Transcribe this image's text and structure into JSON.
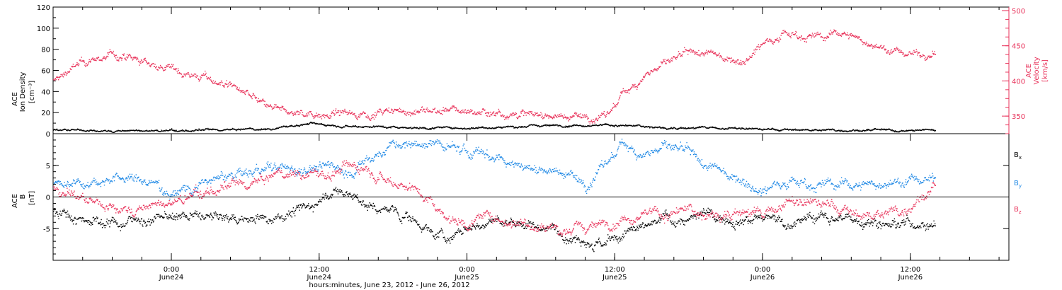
{
  "chart_data": [
    {
      "type": "scatter",
      "panel": "plasma",
      "ylabel_left": [
        "ACE",
        "Ion Density",
        "[cm⁻³]"
      ],
      "ylabel_right": [
        "ACE",
        "Velocity",
        "[km/s]"
      ],
      "ylim_left": [
        0,
        120
      ],
      "yticks_left": [
        "0",
        "20",
        "40",
        "60",
        "80",
        "100",
        "120"
      ],
      "ylim_right": [
        325,
        505
      ],
      "yticks_right": [
        "350",
        "400",
        "450",
        "500"
      ],
      "colors": {
        "density": "#000000",
        "velocity": "#e8325a"
      },
      "series": [
        {
          "name": "Ion Density",
          "axis": "left",
          "x_hours": [
            0,
            6,
            12,
            18,
            22,
            26,
            30,
            34,
            38,
            42,
            46,
            50,
            54,
            58,
            60,
            62,
            66,
            70,
            74,
            78,
            82,
            86,
            89.5
          ],
          "values": [
            4,
            3,
            3,
            4,
            5,
            10,
            8,
            7,
            6,
            6,
            7,
            8,
            9,
            8,
            7,
            6,
            6,
            5,
            4,
            4,
            4,
            3,
            4
          ]
        },
        {
          "name": "Velocity",
          "axis": "right",
          "x_hours": [
            0,
            2,
            4,
            6,
            8,
            10,
            14,
            18,
            20,
            22,
            24,
            26,
            30,
            34,
            38,
            42,
            46,
            50,
            54,
            56,
            57,
            58,
            60,
            62,
            64,
            66,
            70,
            72,
            74,
            78,
            80,
            84,
            86,
            89.5
          ],
          "values": [
            400,
            420,
            430,
            438,
            430,
            425,
            410,
            395,
            378,
            360,
            355,
            355,
            354,
            356,
            358,
            358,
            355,
            352,
            350,
            348,
            365,
            385,
            410,
            425,
            435,
            440,
            430,
            455,
            470,
            462,
            470,
            448,
            440,
            440
          ]
        }
      ]
    },
    {
      "type": "scatter",
      "panel": "magnetic field",
      "ylabel": [
        "ACE",
        "B",
        "[nT]"
      ],
      "ylim": [
        -10,
        10
      ],
      "yticks": [
        "-5",
        "0",
        "5"
      ],
      "xlabel": "hours:minutes, June 23, 2012 - June 26, 2012",
      "xlim_hours": [
        0,
        97
      ],
      "xticks": [
        {
          "hours": 12,
          "time": "0:00",
          "date": "June24"
        },
        {
          "hours": 27,
          "time": "12:00",
          "date": "June24"
        },
        {
          "hours": 42,
          "time": "0:00",
          "date": "June25"
        },
        {
          "hours": 57,
          "time": "12:00",
          "date": "June25"
        },
        {
          "hours": 72,
          "time": "0:00",
          "date": "June26"
        },
        {
          "hours": 87,
          "time": "12:00",
          "date": "June26"
        }
      ],
      "legend": [
        {
          "text": "B",
          "sub": "x"
        },
        {
          "text": "B",
          "sub": "y"
        },
        {
          "text": "B",
          "sub": "z"
        }
      ],
      "colors": {
        "Bx": "#000000",
        "By": "#1e88e5",
        "Bz": "#e8325a"
      },
      "series": [
        {
          "name": "Bx",
          "x_hours": [
            0,
            2,
            4,
            6,
            8,
            10,
            14,
            18,
            22,
            26,
            28,
            30,
            32,
            36,
            38,
            40,
            42,
            44,
            48,
            52,
            54,
            56,
            58,
            60,
            62,
            64,
            66,
            70,
            74,
            78,
            82,
            86,
            89.5
          ],
          "values": [
            -2,
            -3,
            -3.5,
            -4,
            -3.5,
            -3.5,
            -3,
            -3.5,
            -3,
            -1.5,
            1,
            0.5,
            -1.5,
            -3,
            -5,
            -6.5,
            -5,
            -4,
            -4,
            -5.5,
            -6,
            -7.5,
            -6,
            -5,
            -3.5,
            -3.5,
            -3,
            -3,
            -4,
            -3,
            -3.5,
            -4,
            -4
          ]
        },
        {
          "name": "By",
          "x_hours": [
            0,
            4,
            8,
            12,
            16,
            20,
            24,
            28,
            30,
            32,
            34,
            38,
            40,
            42,
            44,
            48,
            52,
            54,
            56,
            58,
            60,
            62,
            64,
            66,
            70,
            72,
            74,
            78,
            82,
            86,
            89.5
          ],
          "values": [
            2,
            3,
            3,
            1,
            2.5,
            4,
            4.5,
            5,
            4,
            6,
            8,
            8.5,
            8,
            7,
            7,
            5,
            4,
            2,
            5,
            8.5,
            7,
            8,
            7,
            5,
            3,
            1,
            3,
            2,
            2,
            2.5,
            3
          ]
        },
        {
          "name": "Bz",
          "x_hours": [
            0,
            4,
            8,
            12,
            16,
            20,
            24,
            28,
            30,
            32,
            34,
            36,
            38,
            40,
            42,
            44,
            48,
            52,
            54,
            56,
            58,
            60,
            62,
            64,
            66,
            70,
            72,
            74,
            78,
            82,
            86,
            89.5
          ],
          "values": [
            2,
            -1,
            -2,
            -1,
            1,
            2,
            4,
            3.5,
            5,
            5,
            3,
            2,
            0,
            -3,
            -4,
            -3,
            -4,
            -5,
            -5,
            -4,
            -3,
            -2,
            -3,
            -2,
            -3,
            -2,
            -3,
            -1,
            -1,
            -3,
            -2,
            2
          ]
        }
      ]
    }
  ]
}
